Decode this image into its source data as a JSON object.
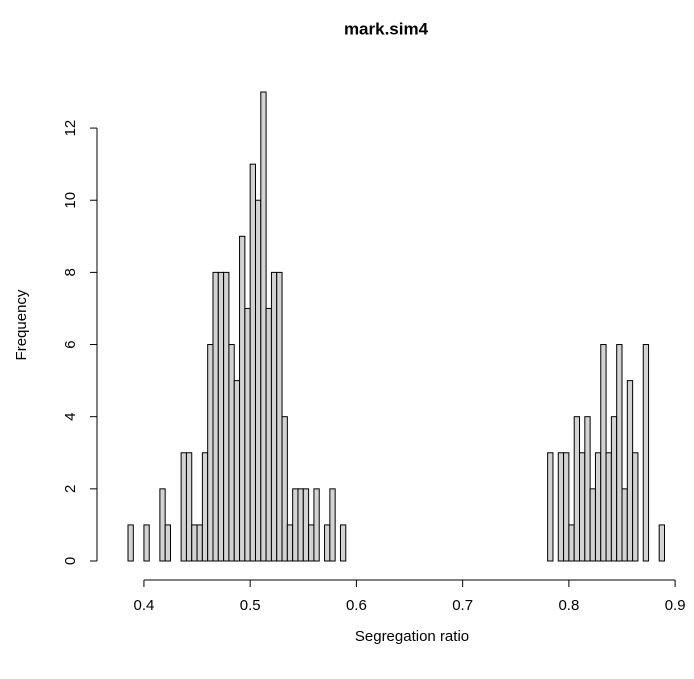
{
  "chart_data": {
    "type": "histogram",
    "title": "mark.sim4",
    "x_label": "Segregation ratio",
    "y_label": "Frequency",
    "bins": [
      0.385,
      0.39,
      0.395,
      0.4,
      0.405,
      0.41,
      0.415,
      0.42,
      0.425,
      0.43,
      0.435,
      0.44,
      0.445,
      0.45,
      0.455,
      0.46,
      0.465,
      0.47,
      0.475,
      0.48,
      0.485,
      0.49,
      0.495,
      0.5,
      0.505,
      0.51,
      0.515,
      0.52,
      0.525,
      0.53,
      0.535,
      0.54,
      0.545,
      0.55,
      0.555,
      0.56,
      0.565,
      0.57,
      0.575,
      0.58,
      0.585,
      0.59,
      0.595,
      0.6,
      0.605,
      0.61,
      0.615,
      0.62,
      0.625,
      0.63,
      0.635,
      0.64,
      0.645,
      0.65,
      0.655,
      0.66,
      0.665,
      0.67,
      0.675,
      0.68,
      0.685,
      0.69,
      0.695,
      0.7,
      0.705,
      0.71,
      0.715,
      0.72,
      0.725,
      0.73,
      0.735,
      0.74,
      0.745,
      0.75,
      0.755,
      0.76,
      0.765,
      0.77,
      0.775,
      0.78,
      0.785,
      0.79,
      0.795,
      0.8,
      0.805,
      0.81,
      0.815,
      0.82,
      0.825,
      0.83,
      0.835,
      0.84,
      0.845,
      0.85,
      0.855,
      0.86,
      0.865,
      0.87,
      0.875,
      0.88,
      0.885,
      0.89
    ],
    "values": [
      1,
      0,
      0,
      1,
      0,
      0,
      2,
      1,
      0,
      0,
      3,
      3,
      1,
      1,
      3,
      6,
      8,
      8,
      8,
      6,
      5,
      9,
      7,
      11,
      10,
      13,
      7,
      8,
      8,
      4,
      1,
      2,
      2,
      2,
      1,
      2,
      0,
      1,
      2,
      0,
      1,
      0,
      0,
      0,
      0,
      0,
      0,
      0,
      0,
      0,
      0,
      0,
      0,
      0,
      0,
      0,
      0,
      0,
      0,
      0,
      0,
      0,
      0,
      0,
      0,
      0,
      0,
      0,
      0,
      0,
      0,
      0,
      0,
      0,
      0,
      0,
      0,
      0,
      0,
      3,
      0,
      3,
      3,
      1,
      4,
      3,
      4,
      2,
      3,
      6,
      3,
      4,
      6,
      2,
      5,
      3,
      0,
      6,
      0,
      0,
      1
    ],
    "color": "#d3d3d3",
    "xlim": [
      0.385,
      0.89
    ],
    "ylim": [
      0,
      13
    ],
    "xticks": [
      0.4,
      0.5,
      0.6,
      0.7,
      0.8,
      0.9
    ],
    "yticks": [
      0,
      2,
      4,
      6,
      8,
      10,
      12
    ]
  }
}
